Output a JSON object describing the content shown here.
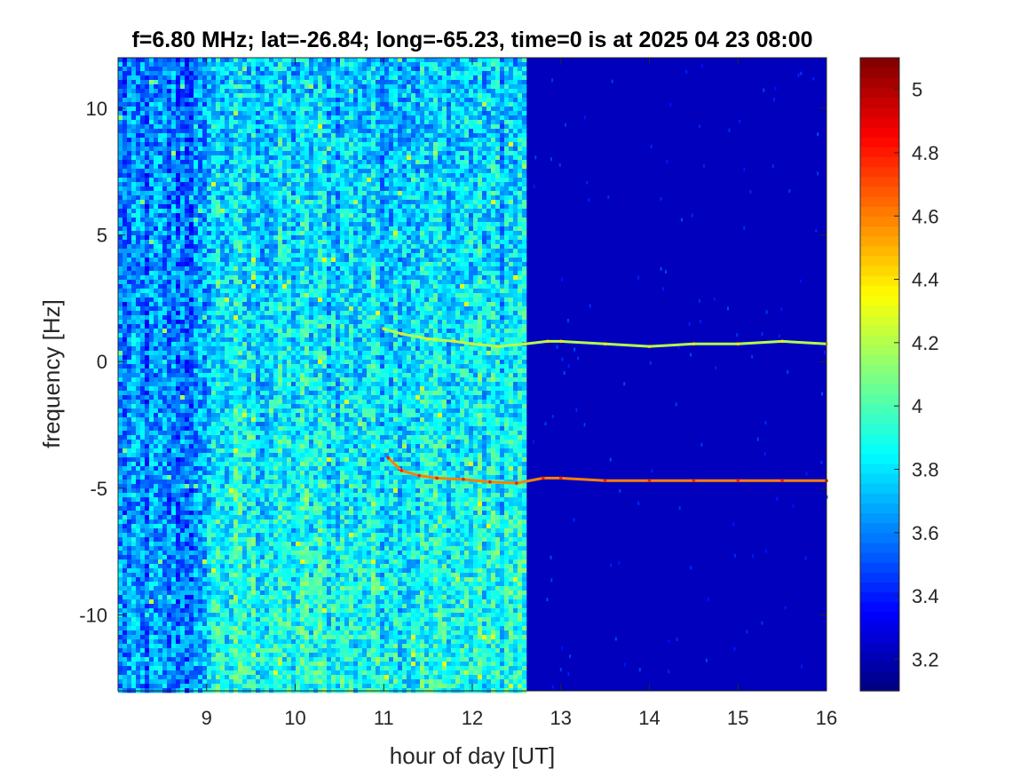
{
  "chart_data": {
    "type": "heatmap",
    "title": "f=6.80 MHz;  lat=-26.84; long=-65.23, time=0 is at 2025 04 23 08:00",
    "xlabel": "hour of day [UT]",
    "ylabel": "frequency [Hz]",
    "xlim": [
      8.0,
      16.0
    ],
    "ylim": [
      -13.0,
      12.0
    ],
    "xticks": [
      9,
      10,
      11,
      12,
      13,
      14,
      15,
      16
    ],
    "xtick_labels": [
      "9",
      "10",
      "11",
      "12",
      "13",
      "14",
      "15",
      "16"
    ],
    "yticks": [
      10,
      5,
      0,
      -5,
      -10
    ],
    "ytick_labels": [
      "10",
      "5",
      "0",
      "-5",
      "-10"
    ],
    "colorbar": {
      "colormap": "jet",
      "clim": [
        3.1,
        5.1
      ],
      "ticks": [
        5,
        4.8,
        4.6,
        4.4,
        4.2,
        4,
        3.8,
        3.6,
        3.4,
        3.2
      ],
      "tick_labels": [
        "5",
        "4.8",
        "4.6",
        "4.4",
        "4.2",
        "4",
        "3.8",
        "3.6",
        "3.4",
        "3.2"
      ]
    },
    "noise_band": {
      "x_start": 8.0,
      "x_end": 12.6,
      "brightest_from": 9.0,
      "level_min": 3.2,
      "level_max": 4.2
    },
    "traces": [
      {
        "points": [
          [
            11.0,
            1.3
          ],
          [
            11.2,
            1.1
          ],
          [
            11.5,
            0.9
          ],
          [
            11.8,
            0.8
          ],
          [
            12.0,
            0.7
          ],
          [
            12.3,
            0.6
          ],
          [
            12.6,
            0.7
          ],
          [
            12.85,
            0.8
          ],
          [
            13.0,
            0.8
          ],
          [
            13.5,
            0.7
          ],
          [
            14.0,
            0.6
          ],
          [
            14.5,
            0.7
          ],
          [
            15.0,
            0.7
          ],
          [
            15.5,
            0.8
          ],
          [
            16.0,
            0.7
          ]
        ],
        "level": 4.2
      },
      {
        "points": [
          [
            11.05,
            -3.8
          ],
          [
            11.2,
            -4.3
          ],
          [
            11.4,
            -4.5
          ],
          [
            11.6,
            -4.6
          ],
          [
            11.9,
            -4.65
          ],
          [
            12.2,
            -4.75
          ],
          [
            12.5,
            -4.8
          ],
          [
            12.8,
            -4.6
          ],
          [
            13.0,
            -4.6
          ],
          [
            13.5,
            -4.7
          ],
          [
            14.0,
            -4.7
          ],
          [
            14.5,
            -4.7
          ],
          [
            15.0,
            -4.7
          ],
          [
            15.5,
            -4.7
          ],
          [
            16.0,
            -4.7
          ]
        ],
        "level": 4.6
      }
    ]
  }
}
